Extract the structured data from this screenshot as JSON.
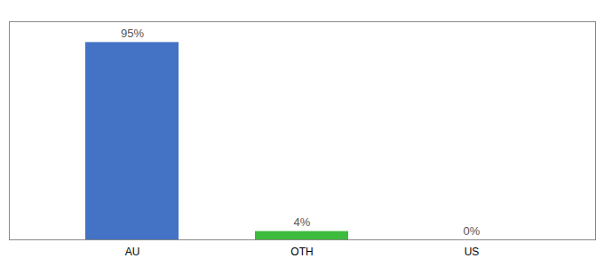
{
  "chart_data": {
    "type": "bar",
    "categories": [
      "AU",
      "OTH",
      "US"
    ],
    "values": [
      95,
      4,
      0
    ],
    "value_labels": [
      "95%",
      "4%",
      "0%"
    ],
    "colors": [
      "#4472c4",
      "#3dbb3d",
      "#4472c4"
    ],
    "ylim": [
      0,
      105
    ],
    "data_labels": true,
    "tick_labels": "x"
  }
}
